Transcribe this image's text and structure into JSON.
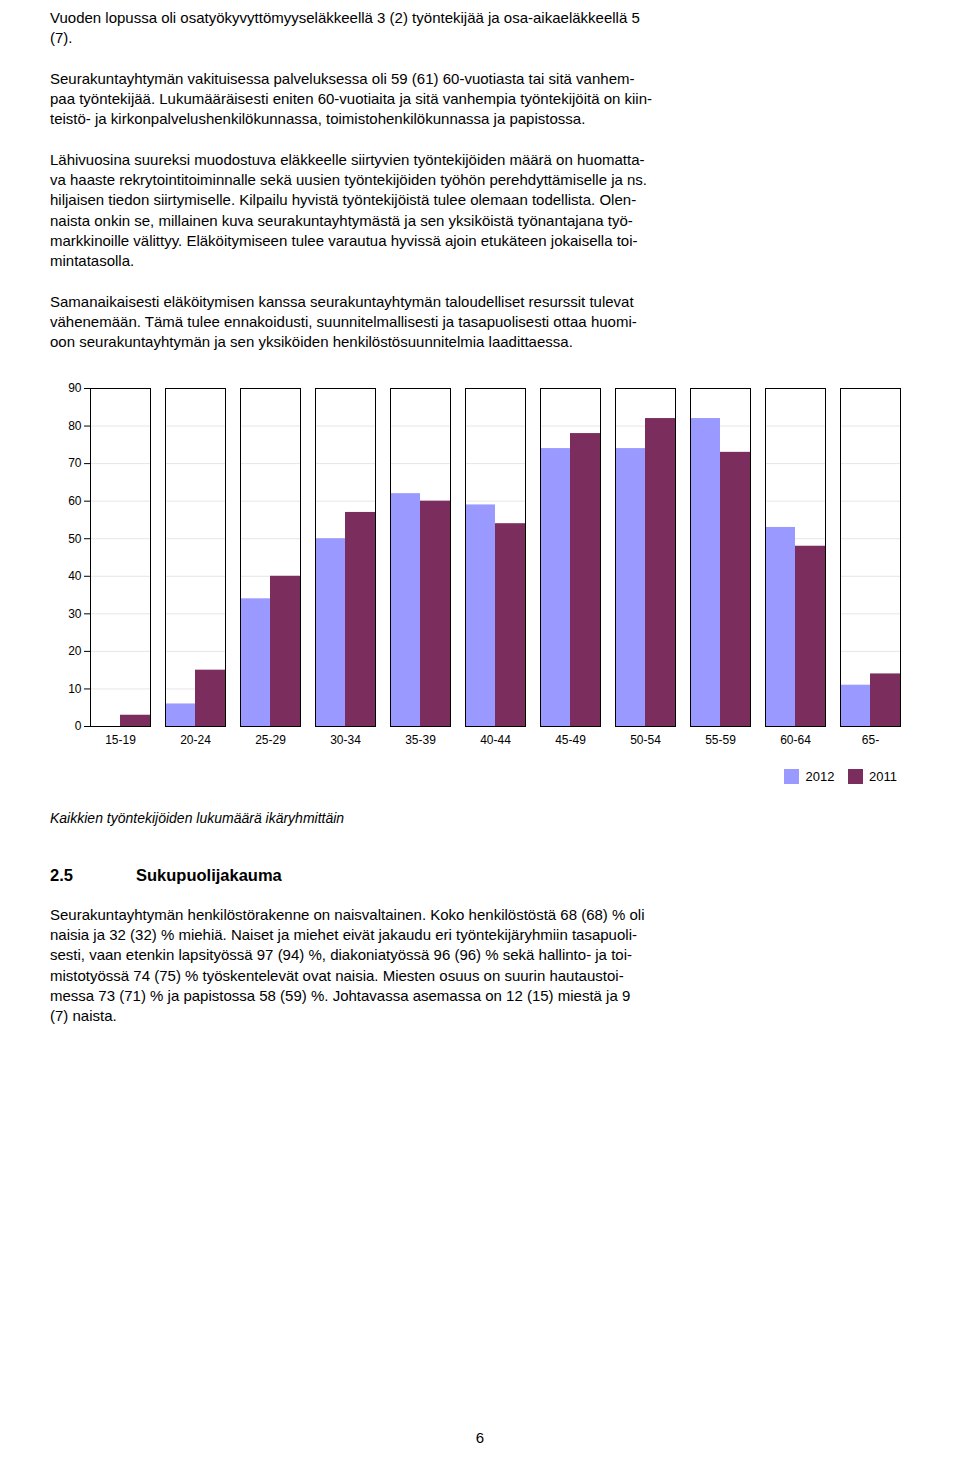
{
  "chart_data": {
    "type": "bar",
    "categories": [
      "15-19",
      "20-24",
      "25-29",
      "30-34",
      "35-39",
      "40-44",
      "45-49",
      "50-54",
      "55-59",
      "60-64",
      "65-"
    ],
    "series": [
      {
        "name": "2012",
        "color": "#9999FF",
        "values": [
          0,
          6,
          34,
          50,
          62,
          59,
          74,
          74,
          82,
          53,
          11
        ]
      },
      {
        "name": "2011",
        "color": "#7B2D5E",
        "values": [
          3,
          15,
          40,
          57,
          60,
          54,
          78,
          82,
          73,
          48,
          14
        ]
      }
    ],
    "ylim": [
      0,
      90
    ],
    "yticks": [
      0,
      10,
      20,
      30,
      40,
      50,
      60,
      70,
      80,
      90
    ],
    "grid": true,
    "legend": "lower right",
    "annotations": [
      "Vuoden lopussa oli osatyökyvyttömyyseläkkeellä 3 (2) työntekijää ja osa-aikaeläkkeellä 5\n(7).\n\nSeurakuntayhtymän vakituisessa palveluksessa oli 59 (61) 60-vuotiasta tai sitä vanhem-\npaa työntekijää. Lukumääräisesti eniten 60-vuotiaita ja sitä vanhempia työntekijöitä on kiin-\nteistö- ja kirkonpalvelushenkilökunnassa, toimistohenkilökunnassa ja papistossa.\n\nLähivuosina suureksi muodostuva eläkkeelle siirtyvien työntekijöiden määrä on huomatta-\nva haaste rekrytointitoiminnalle sekä uusien työntekijöiden työhön perehdyttämiselle ja ns.\nhiljaisen tiedon siirtymiselle. Kilpailu hyvistä työntekijöistä tulee olemaan todellista. Olen-\nnaista onkin se, millainen kuva seurakuntayhtymästä ja sen yksiköistä työnantajana työ-\nmarkkinoille välittyy. Eläköitymiseen tulee varautua hyvissä ajoin etukäteen jokaisella toi-\nmintatasolla.\n\nSamanaikaisesti eläköitymisen kanssa seurakuntayhtymän taloudelliset resurssit tulevat\nvähenemään. Tämä tulee ennakoidusti, suunnitelmallisesti ja tasapuolisesti ottaa huomi-\noon seurakuntayhtymän ja sen yksiköiden henkilöstösuunnitelmia laadittaessa.",
      "Kaikkien työntekijöiden lukumäärä ikäryhmittäin",
      "2.5",
      "Sukupuolijakauma",
      "Seurakuntayhtymän henkilöstörakenne on naisvaltainen. Koko henkilöstöstä 68 (68) % oli\nnaisia ja 32 (32) % miehiä. Naiset ja miehet eivät jakaudu eri työntekijäryhmiin tasapuoli-\nsesti, vaan etenkin lapsityössä 97 (94) %, diakoniatyössä 96 (96) % sekä hallinto- ja toi-\nmistotyössä 74 (75) % työskentelevät ovat naisia. Miesten osuus on suurin hautaustoi-\nmessa 73 (71) % ja papistossa 58 (59) %. Johtavassa asemassa on 12 (15) miestä ja 9\n(7) naista.",
      "6"
    ]
  }
}
